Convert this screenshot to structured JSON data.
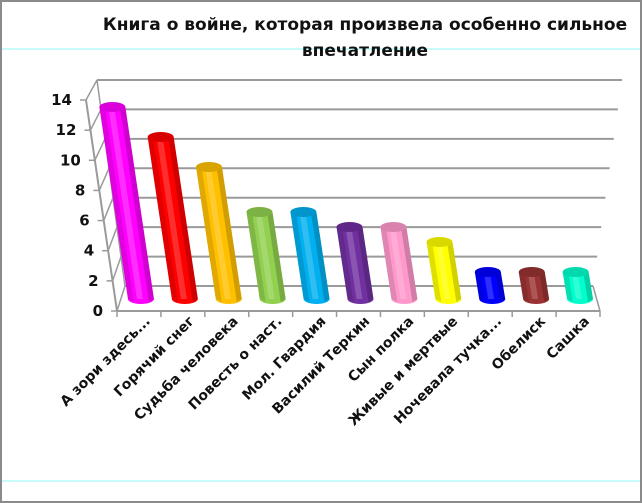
{
  "chart_data": {
    "type": "bar",
    "style": "3d-cylinder",
    "title": "Книга о войне, которая произвела особенно сильное впечатление",
    "xlabel": "",
    "ylabel": "",
    "ylim": [
      0,
      14
    ],
    "yticks": [
      0,
      2,
      4,
      6,
      8,
      10,
      12,
      14
    ],
    "grid": true,
    "legend": null,
    "categories": [
      "А зори здесь...",
      "Горячий снег",
      "Судьба человека",
      "Повесть о наст.",
      "Мол. Гвардия",
      "Василий Теркин",
      "Сын полка",
      "Живые и мертвые",
      "Ночевала тучка...",
      "Обелиск",
      "Сашка"
    ],
    "values": [
      13,
      11,
      9,
      6,
      6,
      5,
      5,
      4,
      2,
      2,
      2
    ],
    "colors": [
      "#ff00ff",
      "#ff0000",
      "#ffc000",
      "#92d050",
      "#00b0f0",
      "#7030a0",
      "#ff99cc",
      "#ffff00",
      "#0000ff",
      "#993333",
      "#00ffcc"
    ]
  },
  "title_line1": "Книга о войне, которая произвела особенно сильное",
  "title_line2": "впечатление"
}
